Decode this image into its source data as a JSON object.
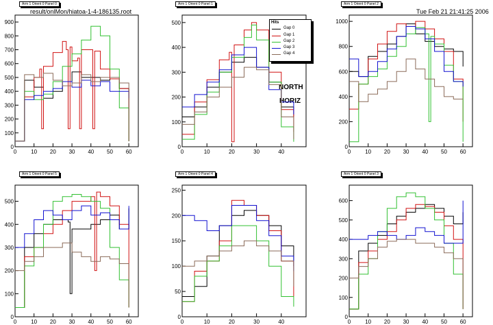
{
  "header": {
    "source_file": "result/onlMon/hiatoa-1-4-186135.root",
    "timestamp": "Tue Feb 21 21:41:25 2006"
  },
  "side_labels": [
    "NORTH",
    "HORIZ"
  ],
  "legend": {
    "title": "Hits",
    "entries": [
      {
        "label": "Gap 0",
        "color": "#000000"
      },
      {
        "label": "Gap 1",
        "color": "#d01010"
      },
      {
        "label": "Gap 2",
        "color": "#30c030"
      },
      {
        "label": "Gap 3",
        "color": "#1010d0"
      },
      {
        "label": "Gap 4",
        "color": "#8a6a58"
      }
    ]
  },
  "chart_data": [
    {
      "type": "line",
      "title": "Arm 1 Orient 0 Panel 0",
      "xlim": [
        0,
        65
      ],
      "ylim": [
        0,
        950
      ],
      "xticks": [
        0,
        10,
        20,
        30,
        40,
        50,
        60
      ],
      "yticks": [
        0,
        100,
        200,
        300,
        400,
        500,
        600,
        700,
        800,
        900
      ],
      "series": [
        {
          "name": "Gap 0",
          "x": [
            0,
            5,
            10,
            15,
            20,
            25,
            30,
            35,
            40,
            45,
            50,
            55,
            60
          ],
          "y": [
            40,
            480,
            430,
            350,
            400,
            470,
            540,
            500,
            500,
            480,
            490,
            420,
            40
          ]
        },
        {
          "name": "Gap 1",
          "x": [
            0,
            5,
            10,
            13,
            14,
            15,
            20,
            25,
            27,
            28,
            29,
            30,
            33,
            34,
            35,
            40,
            41,
            42,
            45,
            50,
            55,
            60
          ],
          "y": [
            40,
            360,
            500,
            560,
            130,
            580,
            680,
            760,
            700,
            130,
            720,
            620,
            640,
            130,
            700,
            700,
            130,
            690,
            560,
            490,
            420,
            40
          ]
        },
        {
          "name": "Gap 2",
          "x": [
            0,
            5,
            10,
            15,
            20,
            25,
            30,
            35,
            40,
            45,
            50,
            55,
            60
          ],
          "y": [
            40,
            400,
            340,
            380,
            470,
            580,
            670,
            770,
            870,
            800,
            560,
            280,
            40
          ]
        },
        {
          "name": "Gap 3",
          "x": [
            0,
            5,
            10,
            15,
            20,
            25,
            30,
            35,
            40,
            45,
            50,
            55,
            60
          ],
          "y": [
            40,
            340,
            370,
            400,
            420,
            470,
            430,
            480,
            440,
            470,
            400,
            400,
            350
          ]
        },
        {
          "name": "Gap 4",
          "x": [
            0,
            5,
            10,
            15,
            20,
            25,
            30,
            35,
            40,
            45,
            50,
            55,
            60
          ],
          "y": [
            40,
            520,
            500,
            530,
            480,
            440,
            460,
            520,
            470,
            500,
            500,
            460,
            40
          ]
        }
      ]
    },
    {
      "type": "line",
      "title": "Arm 1 Orient 0 Panel 1",
      "xlim": [
        0,
        50
      ],
      "ylim": [
        0,
        530
      ],
      "xticks": [
        0,
        10,
        20,
        30,
        40
      ],
      "yticks": [
        0,
        100,
        200,
        300,
        400,
        500
      ],
      "series": [
        {
          "name": "Gap 0",
          "x": [
            0,
            5,
            10,
            15,
            20,
            25,
            30,
            35,
            40,
            45
          ],
          "y": [
            120,
            160,
            240,
            300,
            340,
            360,
            320,
            260,
            160,
            120
          ]
        },
        {
          "name": "Gap 1",
          "x": [
            0,
            5,
            10,
            15,
            19,
            20,
            21,
            25,
            28,
            30,
            35,
            40,
            45
          ],
          "y": [
            50,
            180,
            270,
            350,
            380,
            20,
            410,
            470,
            500,
            470,
            300,
            150,
            60
          ]
        },
        {
          "name": "Gap 2",
          "x": [
            0,
            5,
            10,
            15,
            20,
            25,
            28,
            30,
            35,
            40,
            45
          ],
          "y": [
            30,
            130,
            220,
            300,
            360,
            440,
            490,
            430,
            260,
            80,
            20
          ]
        },
        {
          "name": "Gap 3",
          "x": [
            0,
            5,
            10,
            15,
            20,
            25,
            30,
            35,
            40,
            45
          ],
          "y": [
            160,
            210,
            260,
            310,
            370,
            400,
            320,
            230,
            180,
            130
          ]
        },
        {
          "name": "Gap 4",
          "x": [
            0,
            5,
            10,
            15,
            20,
            25,
            30,
            35,
            40,
            45
          ],
          "y": [
            90,
            140,
            200,
            240,
            280,
            320,
            310,
            250,
            120,
            30
          ]
        }
      ]
    },
    {
      "type": "line",
      "title": "Arm 1 Orient 0 Panel 2",
      "xlim": [
        0,
        65
      ],
      "ylim": [
        0,
        1050
      ],
      "xticks": [
        0,
        10,
        20,
        30,
        40,
        50,
        60
      ],
      "yticks": [
        0,
        200,
        400,
        600,
        800,
        1000
      ],
      "series": [
        {
          "name": "Gap 0",
          "x": [
            0,
            5,
            10,
            15,
            20,
            25,
            30,
            35,
            40,
            45,
            50,
            55,
            60
          ],
          "y": [
            600,
            560,
            720,
            760,
            820,
            880,
            980,
            900,
            840,
            800,
            780,
            760,
            640
          ]
        },
        {
          "name": "Gap 1",
          "x": [
            0,
            5,
            10,
            15,
            20,
            25,
            30,
            35,
            40,
            45,
            50,
            55,
            60
          ],
          "y": [
            300,
            500,
            700,
            820,
            920,
            980,
            960,
            1000,
            940,
            860,
            760,
            540,
            200
          ]
        },
        {
          "name": "Gap 2",
          "x": [
            0,
            5,
            10,
            15,
            20,
            25,
            30,
            35,
            40,
            42,
            43,
            45,
            50,
            55,
            60
          ],
          "y": [
            40,
            500,
            560,
            620,
            720,
            800,
            900,
            950,
            900,
            200,
            880,
            820,
            650,
            520,
            40
          ]
        },
        {
          "name": "Gap 3",
          "x": [
            0,
            5,
            10,
            15,
            20,
            25,
            30,
            35,
            40,
            45,
            50,
            55,
            60
          ],
          "y": [
            700,
            560,
            600,
            680,
            780,
            880,
            960,
            940,
            860,
            760,
            600,
            520,
            480
          ]
        },
        {
          "name": "Gap 4",
          "x": [
            0,
            5,
            10,
            15,
            20,
            25,
            30,
            35,
            40,
            45,
            50,
            55,
            60
          ],
          "y": [
            520,
            360,
            420,
            460,
            520,
            600,
            700,
            620,
            540,
            480,
            400,
            380,
            380
          ]
        }
      ]
    },
    {
      "type": "line",
      "title": "Arm 1 Orient 0 Panel 5",
      "xlim": [
        0,
        65
      ],
      "ylim": [
        0,
        570
      ],
      "xticks": [
        0,
        10,
        20,
        30,
        40,
        50,
        60
      ],
      "yticks": [
        0,
        100,
        200,
        300,
        400,
        500
      ],
      "series": [
        {
          "name": "Gap 0",
          "x": [
            0,
            5,
            10,
            15,
            20,
            25,
            28,
            29,
            30,
            35,
            40,
            45,
            50,
            55,
            60
          ],
          "y": [
            40,
            300,
            360,
            400,
            420,
            420,
            410,
            100,
            380,
            380,
            400,
            420,
            440,
            380,
            470
          ]
        },
        {
          "name": "Gap 1",
          "x": [
            0,
            5,
            10,
            15,
            20,
            25,
            30,
            35,
            40,
            42,
            43,
            45,
            50,
            55,
            60
          ],
          "y": [
            40,
            260,
            300,
            360,
            400,
            460,
            500,
            500,
            520,
            200,
            540,
            520,
            480,
            400,
            40
          ]
        },
        {
          "name": "Gap 2",
          "x": [
            0,
            5,
            10,
            15,
            20,
            25,
            30,
            35,
            40,
            45,
            50,
            55,
            60
          ],
          "y": [
            40,
            220,
            300,
            400,
            500,
            520,
            530,
            520,
            500,
            470,
            300,
            160,
            40
          ]
        },
        {
          "name": "Gap 3",
          "x": [
            0,
            5,
            10,
            15,
            20,
            25,
            30,
            35,
            40,
            45,
            50,
            55,
            60
          ],
          "y": [
            300,
            360,
            420,
            460,
            440,
            420,
            460,
            480,
            440,
            450,
            420,
            380,
            480
          ]
        },
        {
          "name": "Gap 4",
          "x": [
            0,
            5,
            10,
            15,
            20,
            25,
            30,
            35,
            40,
            45,
            50,
            55,
            60
          ],
          "y": [
            200,
            240,
            260,
            300,
            300,
            320,
            280,
            260,
            240,
            260,
            250,
            230,
            40
          ]
        }
      ]
    },
    {
      "type": "line",
      "title": "Arm 1 Orient 0 Panel 4",
      "xlim": [
        0,
        50
      ],
      "ylim": [
        0,
        260
      ],
      "xticks": [
        0,
        10,
        20,
        30,
        40
      ],
      "yticks": [
        0,
        50,
        100,
        150,
        200,
        250
      ],
      "series": [
        {
          "name": "Gap 0",
          "x": [
            0,
            5,
            10,
            15,
            20,
            25,
            30,
            35,
            40,
            45
          ],
          "y": [
            40,
            60,
            120,
            180,
            200,
            210,
            200,
            180,
            140,
            100
          ]
        },
        {
          "name": "Gap 1",
          "x": [
            0,
            5,
            10,
            15,
            20,
            25,
            30,
            35,
            40,
            45
          ],
          "y": [
            30,
            90,
            110,
            150,
            230,
            220,
            200,
            170,
            110,
            40
          ]
        },
        {
          "name": "Gap 2",
          "x": [
            0,
            5,
            10,
            15,
            20,
            25,
            30,
            35,
            40,
            45
          ],
          "y": [
            30,
            80,
            110,
            140,
            180,
            180,
            150,
            100,
            40,
            20
          ]
        },
        {
          "name": "Gap 3",
          "x": [
            0,
            5,
            10,
            15,
            20,
            25,
            30,
            35,
            40,
            45
          ],
          "y": [
            200,
            190,
            170,
            180,
            220,
            220,
            190,
            160,
            120,
            90
          ]
        },
        {
          "name": "Gap 4",
          "x": [
            0,
            5,
            10,
            15,
            20,
            25,
            30,
            35,
            40,
            45
          ],
          "y": [
            100,
            110,
            120,
            130,
            140,
            150,
            140,
            130,
            110,
            60
          ]
        }
      ]
    },
    {
      "type": "line",
      "title": "Arm 1 Orient 0 Panel 3",
      "xlim": [
        0,
        65
      ],
      "ylim": [
        0,
        680
      ],
      "xticks": [
        0,
        10,
        20,
        30,
        40,
        50,
        60
      ],
      "yticks": [
        0,
        100,
        200,
        300,
        400,
        500,
        600
      ],
      "series": [
        {
          "name": "Gap 0",
          "x": [
            0,
            5,
            10,
            15,
            20,
            25,
            30,
            35,
            40,
            45,
            50,
            55,
            60
          ],
          "y": [
            40,
            340,
            380,
            420,
            480,
            520,
            540,
            560,
            580,
            560,
            520,
            480,
            540
          ]
        },
        {
          "name": "Gap 1",
          "x": [
            0,
            5,
            10,
            15,
            20,
            25,
            30,
            35,
            40,
            45,
            50,
            55,
            60
          ],
          "y": [
            40,
            280,
            340,
            400,
            440,
            500,
            560,
            580,
            570,
            540,
            470,
            400,
            40
          ]
        },
        {
          "name": "Gap 2",
          "x": [
            0,
            5,
            10,
            15,
            20,
            25,
            30,
            35,
            40,
            45,
            50,
            55,
            60
          ],
          "y": [
            40,
            220,
            300,
            440,
            560,
            620,
            640,
            620,
            560,
            500,
            380,
            220,
            40
          ]
        },
        {
          "name": "Gap 3",
          "x": [
            0,
            5,
            10,
            15,
            20,
            25,
            30,
            35,
            40,
            45,
            50,
            55,
            60
          ],
          "y": [
            400,
            400,
            420,
            440,
            420,
            400,
            420,
            460,
            440,
            420,
            380,
            380,
            600
          ]
        },
        {
          "name": "Gap 4",
          "x": [
            0,
            5,
            10,
            15,
            20,
            25,
            30,
            35,
            40,
            45,
            50,
            55,
            60
          ],
          "y": [
            200,
            260,
            300,
            360,
            390,
            400,
            400,
            380,
            380,
            360,
            330,
            300,
            40
          ]
        }
      ]
    }
  ]
}
